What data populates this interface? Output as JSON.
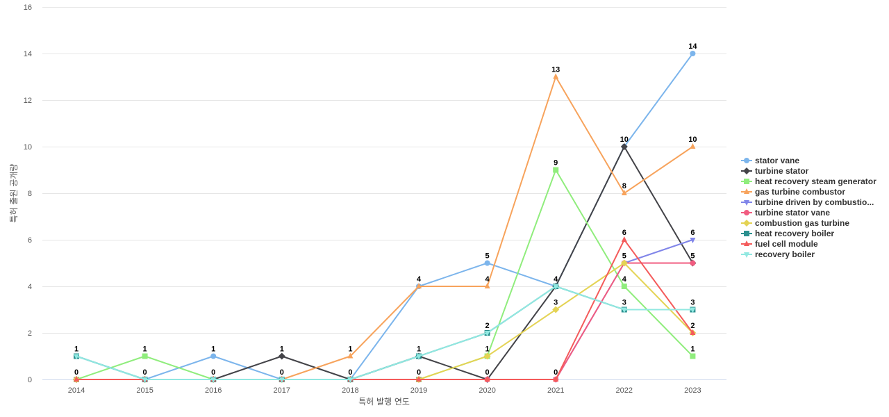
{
  "chart_data": {
    "type": "line",
    "title": "",
    "xlabel": "특허 발행 연도",
    "ylabel": "특허 출원 공개량",
    "x": [
      2014,
      2015,
      2016,
      2017,
      2018,
      2019,
      2020,
      2021,
      2022,
      2023
    ],
    "ylim": [
      0,
      16
    ],
    "yticks": [
      0,
      2,
      4,
      6,
      8,
      10,
      12,
      14,
      16
    ],
    "grid": true,
    "legend_position": "right",
    "series": [
      {
        "name": "stator vane",
        "values": [
          1,
          0,
          1,
          0,
          0,
          4,
          5,
          4,
          10,
          14
        ],
        "color": "#7cb5ec",
        "marker": "circle"
      },
      {
        "name": "turbine stator",
        "values": [
          0,
          0,
          0,
          1,
          0,
          1,
          0,
          4,
          10,
          5
        ],
        "color": "#434348",
        "marker": "diamond"
      },
      {
        "name": "heat recovery steam generator",
        "values": [
          0,
          1,
          0,
          0,
          0,
          0,
          1,
          9,
          4,
          1
        ],
        "color": "#90ed7d",
        "marker": "square"
      },
      {
        "name": "gas turbine combustor",
        "values": [
          0,
          0,
          0,
          0,
          1,
          4,
          4,
          13,
          8,
          10
        ],
        "color": "#f7a35c",
        "marker": "triangle"
      },
      {
        "name": "turbine driven by combustio...",
        "values": [
          0,
          0,
          0,
          0,
          0,
          0,
          0,
          0,
          5,
          6
        ],
        "color": "#8085e9",
        "marker": "triangle-down"
      },
      {
        "name": "turbine stator vane",
        "values": [
          0,
          0,
          0,
          0,
          0,
          0,
          0,
          0,
          5,
          5
        ],
        "color": "#f15c80",
        "marker": "circle"
      },
      {
        "name": "combustion gas turbine",
        "values": [
          0,
          0,
          0,
          0,
          0,
          0,
          1,
          3,
          5,
          2
        ],
        "color": "#e4d354",
        "marker": "diamond"
      },
      {
        "name": "heat recovery boiler",
        "values": [
          1,
          0,
          0,
          0,
          0,
          1,
          2,
          4,
          3,
          3
        ],
        "color": "#2b908f",
        "marker": "square"
      },
      {
        "name": "fuel cell module",
        "values": [
          0,
          0,
          0,
          0,
          0,
          0,
          0,
          0,
          6,
          2
        ],
        "color": "#f45b5b",
        "marker": "triangle"
      },
      {
        "name": "recovery boiler",
        "values": [
          1,
          0,
          0,
          0,
          0,
          1,
          2,
          4,
          3,
          3
        ],
        "color": "#91e8e1",
        "marker": "triangle-down"
      }
    ],
    "data_labels": [
      {
        "x": 2014,
        "text": "1",
        "value": 1
      },
      {
        "x": 2014,
        "text": "0",
        "value": 0
      },
      {
        "x": 2015,
        "text": "1",
        "value": 1
      },
      {
        "x": 2015,
        "text": "0",
        "value": 0
      },
      {
        "x": 2016,
        "text": "1",
        "value": 1
      },
      {
        "x": 2016,
        "text": "0",
        "value": 0
      },
      {
        "x": 2017,
        "text": "1",
        "value": 1
      },
      {
        "x": 2017,
        "text": "0",
        "value": 0
      },
      {
        "x": 2018,
        "text": "1",
        "value": 1
      },
      {
        "x": 2018,
        "text": "0",
        "value": 0
      },
      {
        "x": 2019,
        "text": "4",
        "value": 4
      },
      {
        "x": 2019,
        "text": "1",
        "value": 1
      },
      {
        "x": 2019,
        "text": "0",
        "value": 0
      },
      {
        "x": 2020,
        "text": "5",
        "value": 5
      },
      {
        "x": 2020,
        "text": "4",
        "value": 4
      },
      {
        "x": 2020,
        "text": "2",
        "value": 2
      },
      {
        "x": 2020,
        "text": "1",
        "value": 1
      },
      {
        "x": 2020,
        "text": "0",
        "value": 0
      },
      {
        "x": 2021,
        "text": "13",
        "value": 13
      },
      {
        "x": 2021,
        "text": "9",
        "value": 9
      },
      {
        "x": 2021,
        "text": "4",
        "value": 4
      },
      {
        "x": 2021,
        "text": "3",
        "value": 3
      },
      {
        "x": 2021,
        "text": "0",
        "value": 0
      },
      {
        "x": 2022,
        "text": "10",
        "value": 10
      },
      {
        "x": 2022,
        "text": "8",
        "value": 8
      },
      {
        "x": 2022,
        "text": "6",
        "value": 6
      },
      {
        "x": 2022,
        "text": "5",
        "value": 5
      },
      {
        "x": 2022,
        "text": "4",
        "value": 4
      },
      {
        "x": 2022,
        "text": "3",
        "value": 3
      },
      {
        "x": 2023,
        "text": "14",
        "value": 14
      },
      {
        "x": 2023,
        "text": "10",
        "value": 10
      },
      {
        "x": 2023,
        "text": "6",
        "value": 6
      },
      {
        "x": 2023,
        "text": "5",
        "value": 5
      },
      {
        "x": 2023,
        "text": "3",
        "value": 3
      },
      {
        "x": 2023,
        "text": "2",
        "value": 2
      },
      {
        "x": 2023,
        "text": "1",
        "value": 1
      }
    ]
  }
}
